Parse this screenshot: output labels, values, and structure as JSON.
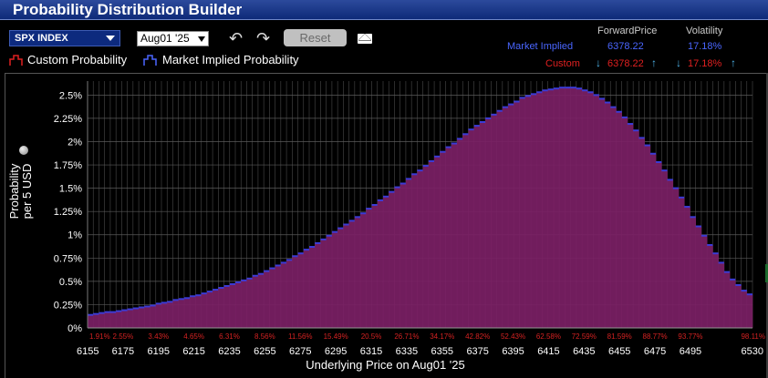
{
  "window": {
    "title": "Probability Distribution Builder"
  },
  "toolbar": {
    "symbol": "SPX INDEX",
    "expiry": "Aug01 '25",
    "reset_label": "Reset",
    "icons": [
      "undo-icon",
      "redo-icon",
      "email-icon"
    ]
  },
  "legend": {
    "custom_label": "Custom Probability",
    "market_label": "Market Implied Probability"
  },
  "summary": {
    "forward_header": "ForwardPrice",
    "vol_header": "Volatility",
    "market_row_label": "Market Implied",
    "market_forward": "6378.22",
    "market_vol": "17.18%",
    "custom_row_label": "Custom",
    "custom_forward": "6378.22",
    "custom_vol": "17.18%"
  },
  "colors": {
    "bar_fill": "#7b2065",
    "bar_top": "#3b3bd6",
    "cum_label": "#d42222",
    "market_text": "#4a66ff",
    "custom_text": "#e02020"
  },
  "chart_data": {
    "type": "bar",
    "title": "",
    "ylabel": "Probability per 5 USD",
    "xlabel": "Underlying Price on Aug01 '25",
    "x_start": 6155,
    "x_step": 2.5,
    "x_ticks": [
      6155,
      6175,
      6195,
      6215,
      6235,
      6255,
      6275,
      6295,
      6315,
      6335,
      6355,
      6375,
      6395,
      6415,
      6435,
      6455,
      6475,
      6495,
      6530
    ],
    "y_ticks": [
      "0%",
      "0.25%",
      "0.5%",
      "0.75%",
      "1%",
      "1.25%",
      "1.5%",
      "1.75%",
      "2%",
      "2.25%",
      "2.5%"
    ],
    "ylim": [
      0,
      2.65
    ],
    "values": [
      0.14,
      0.15,
      0.16,
      0.17,
      0.17,
      0.18,
      0.19,
      0.2,
      0.21,
      0.22,
      0.23,
      0.24,
      0.26,
      0.27,
      0.28,
      0.3,
      0.31,
      0.32,
      0.34,
      0.35,
      0.37,
      0.39,
      0.41,
      0.43,
      0.45,
      0.47,
      0.49,
      0.51,
      0.53,
      0.56,
      0.58,
      0.61,
      0.64,
      0.67,
      0.7,
      0.73,
      0.77,
      0.8,
      0.84,
      0.87,
      0.91,
      0.95,
      0.99,
      1.03,
      1.07,
      1.11,
      1.15,
      1.19,
      1.23,
      1.28,
      1.32,
      1.37,
      1.41,
      1.46,
      1.51,
      1.55,
      1.6,
      1.65,
      1.69,
      1.74,
      1.79,
      1.84,
      1.89,
      1.94,
      1.98,
      2.03,
      2.08,
      2.13,
      2.17,
      2.21,
      2.25,
      2.29,
      2.33,
      2.37,
      2.4,
      2.43,
      2.47,
      2.49,
      2.51,
      2.53,
      2.55,
      2.56,
      2.57,
      2.58,
      2.58,
      2.58,
      2.57,
      2.55,
      2.53,
      2.5,
      2.46,
      2.42,
      2.37,
      2.32,
      2.26,
      2.19,
      2.12,
      2.04,
      1.96,
      1.87,
      1.78,
      1.69,
      1.59,
      1.5,
      1.4,
      1.3,
      1.19,
      1.09,
      0.99,
      0.89,
      0.8,
      0.7,
      0.6,
      0.52,
      0.46,
      0.4,
      0.36
    ],
    "cumulative_labels": [
      {
        "x": 6155,
        "label": "1.91%"
      },
      {
        "x": 6175,
        "label": "2.55%"
      },
      {
        "x": 6195,
        "label": "3.43%"
      },
      {
        "x": 6215,
        "label": "4.65%"
      },
      {
        "x": 6235,
        "label": "6.31%"
      },
      {
        "x": 6255,
        "label": "8.56%"
      },
      {
        "x": 6275,
        "label": "11.56%"
      },
      {
        "x": 6295,
        "label": "15.49%"
      },
      {
        "x": 6315,
        "label": "20.5%"
      },
      {
        "x": 6335,
        "label": "26.71%"
      },
      {
        "x": 6355,
        "label": "34.17%"
      },
      {
        "x": 6375,
        "label": "42.82%"
      },
      {
        "x": 6395,
        "label": "52.43%"
      },
      {
        "x": 6415,
        "label": "62.58%"
      },
      {
        "x": 6435,
        "label": "72.59%"
      },
      {
        "x": 6455,
        "label": "81.59%"
      },
      {
        "x": 6475,
        "label": "88.77%"
      },
      {
        "x": 6495,
        "label": "93.77%"
      },
      {
        "x": 6530,
        "label": "98.11%"
      }
    ]
  }
}
